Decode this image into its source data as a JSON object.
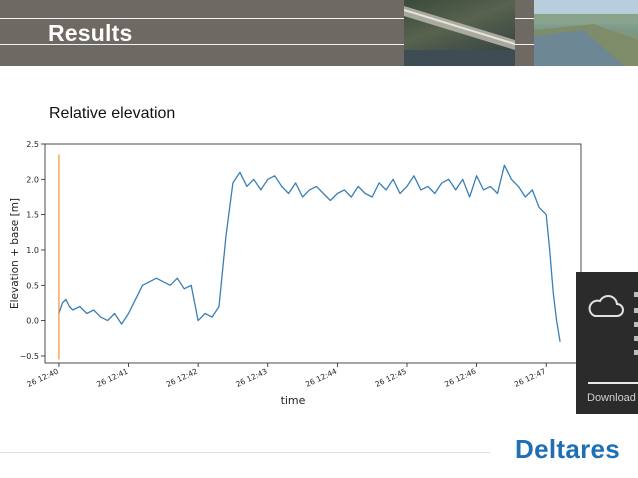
{
  "slide": {
    "title": "Results",
    "subtitle": "Relative elevation",
    "logo_text": "Deltares"
  },
  "toast": {
    "label": "Download",
    "icon": "cloud-icon"
  },
  "colors": {
    "header_bg": "#6e6a63",
    "series_blue": "#3a7fb5",
    "marker_orange": "#f39a45",
    "logo_blue": "#1f6fb5",
    "toast_bg": "#2b2b2b"
  },
  "chart_data": {
    "type": "line",
    "xlabel": "time",
    "ylabel": "Elevation + base [m]",
    "ylim": [
      -0.6,
      2.5
    ],
    "xlim": [
      -0.2,
      7.5
    ],
    "yticks": [
      -0.5,
      0.0,
      0.5,
      1.0,
      1.5,
      2.0,
      2.5
    ],
    "ytick_labels": [
      "−0.5",
      "0.0",
      "0.5",
      "1.0",
      "1.5",
      "2.0",
      "2.5"
    ],
    "xticks": [
      0,
      1,
      2,
      3,
      4,
      5,
      6,
      7
    ],
    "xtick_labels": [
      "26 12:40",
      "26 12:41",
      "26 12:42",
      "26 12:43",
      "26 12:44",
      "26 12:45",
      "26 12:46",
      "26 12:47"
    ],
    "grid": false,
    "series": [
      {
        "color": "#3a7fb5",
        "x": [
          0.0,
          0.05,
          0.1,
          0.15,
          0.2,
          0.3,
          0.4,
          0.5,
          0.6,
          0.7,
          0.8,
          0.9,
          1.0,
          1.1,
          1.2,
          1.3,
          1.4,
          1.5,
          1.6,
          1.7,
          1.8,
          1.9,
          2.0,
          2.05,
          2.1,
          2.2,
          2.3,
          2.4,
          2.5,
          2.6,
          2.7,
          2.8,
          2.9,
          3.0,
          3.1,
          3.2,
          3.3,
          3.4,
          3.5,
          3.6,
          3.7,
          3.8,
          3.9,
          4.0,
          4.1,
          4.2,
          4.3,
          4.4,
          4.5,
          4.6,
          4.7,
          4.8,
          4.9,
          5.0,
          5.1,
          5.2,
          5.3,
          5.4,
          5.5,
          5.6,
          5.7,
          5.8,
          5.9,
          6.0,
          6.1,
          6.2,
          6.3,
          6.4,
          6.5,
          6.6,
          6.7,
          6.8,
          6.9,
          7.0,
          7.05,
          7.1,
          7.15,
          7.2
        ],
        "y": [
          0.1,
          0.25,
          0.3,
          0.2,
          0.15,
          0.2,
          0.1,
          0.15,
          0.05,
          0.0,
          0.1,
          -0.05,
          0.1,
          0.3,
          0.5,
          0.55,
          0.6,
          0.55,
          0.5,
          0.6,
          0.45,
          0.5,
          0.0,
          0.05,
          0.1,
          0.05,
          0.2,
          1.2,
          1.95,
          2.1,
          1.9,
          2.0,
          1.85,
          2.0,
          2.05,
          1.9,
          1.8,
          1.95,
          1.75,
          1.85,
          1.9,
          1.8,
          1.7,
          1.8,
          1.85,
          1.75,
          1.9,
          1.8,
          1.75,
          1.95,
          1.85,
          2.0,
          1.8,
          1.9,
          2.05,
          1.85,
          1.9,
          1.8,
          1.95,
          2.0,
          1.85,
          2.0,
          1.75,
          2.05,
          1.85,
          1.9,
          1.8,
          2.2,
          2.0,
          1.9,
          1.75,
          1.85,
          1.6,
          1.5,
          1.0,
          0.4,
          0.0,
          -0.3
        ]
      },
      {
        "color": "#f39a45",
        "x": [
          0.0,
          0.0
        ],
        "y": [
          -0.55,
          2.35
        ]
      }
    ]
  }
}
